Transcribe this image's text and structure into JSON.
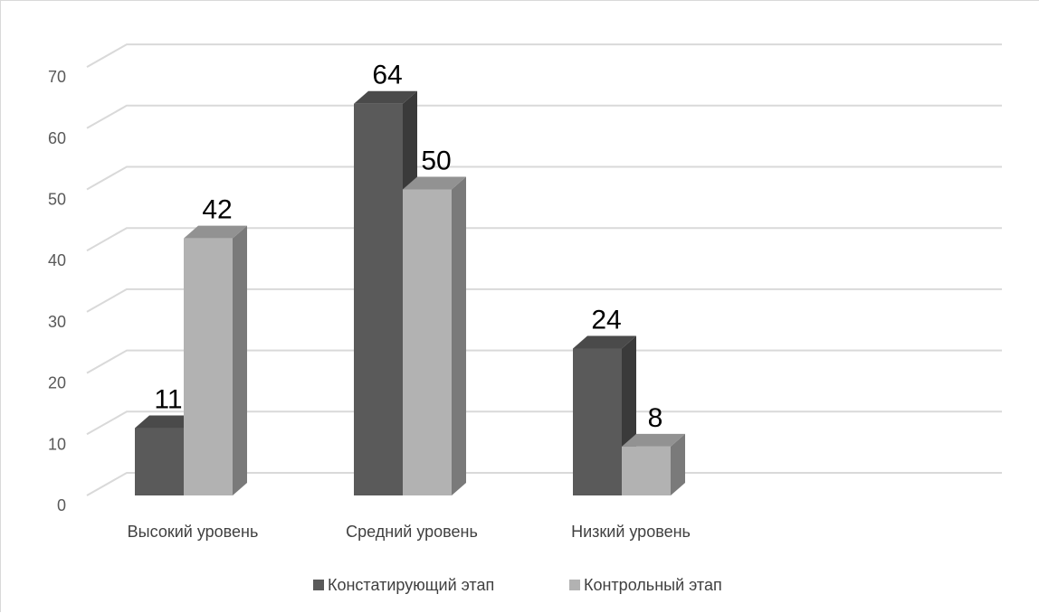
{
  "chart_data": {
    "type": "bar",
    "style": "3d-clustered-column",
    "categories": [
      "Высокий уровень",
      "Средний уровень",
      "Низкий уровень"
    ],
    "series": [
      {
        "name": "Констатирующий этап",
        "values": [
          11,
          64,
          24
        ],
        "color": "#5a5a5a",
        "side_color": "#3a3a3a",
        "top_color": "#4a4a4a"
      },
      {
        "name": "Контрольный этап",
        "values": [
          42,
          50,
          8
        ],
        "color": "#b2b2b2",
        "side_color": "#7a7a7a",
        "top_color": "#929292"
      }
    ],
    "title": "",
    "xlabel": "",
    "ylabel": "",
    "ylim": [
      0,
      70
    ],
    "yticks": [
      0,
      10,
      20,
      30,
      40,
      50,
      60,
      70
    ],
    "grid": true,
    "legend_position": "bottom",
    "data_labels": true
  }
}
